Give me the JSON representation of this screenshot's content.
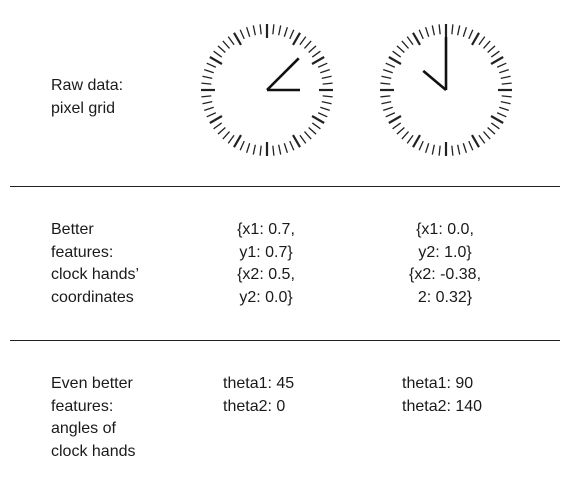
{
  "rows": [
    {
      "label": "Raw data:\npixel grid"
    },
    {
      "label": "Better\nfeatures:\nclock hands’\ncoordinates"
    },
    {
      "label": "Even better\nfeatures:\nangles of\nclock hands"
    }
  ],
  "clocks": [
    {
      "hands": [
        {
          "role": "long",
          "angle_deg": 45,
          "length_frac": 0.68
        },
        {
          "role": "short",
          "angle_deg": 0,
          "length_frac": 0.5
        }
      ]
    },
    {
      "hands": [
        {
          "role": "long",
          "angle_deg": 90,
          "length_frac": 0.8
        },
        {
          "role": "short",
          "angle_deg": 140,
          "length_frac": 0.45
        }
      ]
    }
  ],
  "coordinates": [
    "{x1: 0.7,\ny1: 0.7}\n{x2: 0.5,\ny2: 0.0}",
    "{x1: 0.0,\ny2: 1.0}\n{x2: -0.38,\n2: 0.32}"
  ],
  "angles": [
    "theta1: 45\ntheta2: 0",
    "theta1: 90\ntheta2: 140"
  ]
}
